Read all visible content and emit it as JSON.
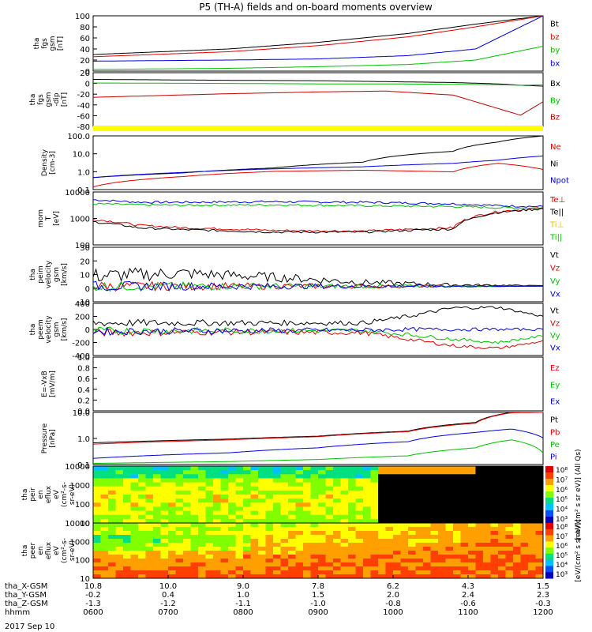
{
  "title": "P5 (TH-A) fields and on-board moments overview",
  "date": "2017 Sep 10",
  "chart_data": [
    {
      "type": "line",
      "panel_label": [
        "tha",
        "fgs",
        "gsm",
        "[nT]"
      ],
      "y_ticks": [
        "100",
        "80",
        "60",
        "40",
        "20",
        "0"
      ],
      "ylim": [
        0,
        100
      ],
      "legend": [
        {
          "text": "Bt",
          "color": "#000000"
        },
        {
          "text": "bz",
          "color": "#e00000"
        },
        {
          "text": "by",
          "color": "#00c000"
        },
        {
          "text": "bx",
          "color": "#0000e0"
        }
      ],
      "x": [
        0,
        0.3,
        0.5,
        0.7,
        0.85,
        1
      ],
      "series": [
        {
          "name": "Bt",
          "color": "#000000",
          "values": [
            30,
            40,
            52,
            68,
            85,
            100
          ]
        },
        {
          "name": "bz",
          "color": "#e00000",
          "values": [
            26,
            35,
            46,
            62,
            80,
            100
          ]
        },
        {
          "name": "by",
          "color": "#00c000",
          "values": [
            3,
            5,
            8,
            12,
            20,
            45
          ]
        },
        {
          "name": "bx",
          "color": "#0000e0",
          "values": [
            18,
            20,
            22,
            28,
            40,
            100
          ]
        }
      ]
    },
    {
      "type": "line",
      "panel_label": [
        "tha",
        "fgs",
        "gsm",
        "-dip",
        "[nT]"
      ],
      "y_ticks": [
        "20",
        "0",
        "-20",
        "-40",
        "-60",
        "-80"
      ],
      "ylim": [
        -95,
        25
      ],
      "legend": [
        {
          "text": "Bx",
          "color": "#000000"
        },
        {
          "text": "By",
          "color": "#00c000"
        },
        {
          "text": "Bz",
          "color": "#c00000"
        }
      ],
      "x": [
        0,
        0.3,
        0.5,
        0.65,
        0.8,
        0.9,
        0.95,
        1
      ],
      "series": [
        {
          "name": "Bx",
          "color": "#000000",
          "values": [
            10,
            8,
            7,
            5,
            3,
            0,
            -3,
            -5
          ]
        },
        {
          "name": "By",
          "color": "#00c000",
          "values": [
            2,
            1,
            0,
            0,
            -1,
            -2,
            -3,
            -2
          ]
        },
        {
          "name": "Bz",
          "color": "#c00000",
          "values": [
            -30,
            -22,
            -18,
            -16,
            -25,
            -55,
            -70,
            -40
          ]
        }
      ]
    },
    {
      "type": "line",
      "panel_label": [
        "Density",
        "[cm-3]"
      ],
      "y_ticks": [
        "100.0",
        "10.0",
        "1.0",
        "0.1"
      ],
      "ylim": [
        0.1,
        300
      ],
      "scale": "log",
      "legend": [
        {
          "text": "Ne",
          "color": "#e00000"
        },
        {
          "text": "Ni",
          "color": "#000000"
        },
        {
          "text": "Npot",
          "color": "#0000e0"
        }
      ],
      "x": [
        0,
        0.2,
        0.4,
        0.6,
        0.8,
        0.9,
        1
      ],
      "series": [
        {
          "name": "Ni",
          "color": "#000000",
          "values": [
            0.6,
            1.2,
            2.5,
            6,
            30,
            120,
            300
          ]
        },
        {
          "name": "Ne",
          "color": "#e00000",
          "values": [
            0.15,
            0.7,
            1.5,
            1.8,
            1.4,
            5,
            2
          ]
        },
        {
          "name": "Npot",
          "color": "#0000e0",
          "values": [
            0.6,
            1.3,
            2.2,
            3,
            5,
            8,
            15
          ]
        }
      ]
    },
    {
      "type": "line",
      "panel_label": [
        "mom",
        "T",
        "[eV]"
      ],
      "y_ticks": [
        "10000",
        "1000",
        "100"
      ],
      "ylim": [
        20,
        10000
      ],
      "scale": "log",
      "legend": [
        {
          "text": "Te⊥",
          "color": "#e00000"
        },
        {
          "text": "Te||",
          "color": "#000000"
        },
        {
          "text": "Ti⊥",
          "color": "#e0c000"
        },
        {
          "text": "Ti||",
          "color": "#00c000"
        }
      ],
      "x": [
        0,
        0.1,
        0.2,
        0.4,
        0.6,
        0.8,
        0.9,
        1
      ],
      "series": [
        {
          "name": "Ti⊥",
          "color": "#0000e0",
          "values": [
            4000,
            3000,
            3000,
            3200,
            3000,
            2500,
            2000,
            1800
          ]
        },
        {
          "name": "Ti||",
          "color": "#00c000",
          "values": [
            2500,
            2200,
            2100,
            2200,
            2000,
            1800,
            1600,
            1500
          ]
        },
        {
          "name": "Te⊥",
          "color": "#e00000",
          "values": [
            400,
            200,
            150,
            110,
            100,
            150,
            1000,
            1500
          ]
        },
        {
          "name": "Te||",
          "color": "#000000",
          "values": [
            300,
            150,
            120,
            90,
            90,
            130,
            900,
            1400
          ]
        }
      ]
    },
    {
      "type": "line",
      "panel_label": [
        "tha",
        "peim",
        "velocity",
        "gsm",
        "[km/s]"
      ],
      "y_ticks": [
        "30",
        "20",
        "10",
        "0",
        "-10"
      ],
      "ylim": [
        -12,
        30
      ],
      "legend": [
        {
          "text": "Vt",
          "color": "#000000"
        },
        {
          "text": "Vz",
          "color": "#e00000"
        },
        {
          "text": "Vy",
          "color": "#00c000"
        },
        {
          "text": "Vx",
          "color": "#0000e0"
        }
      ],
      "x": [
        0,
        0.2,
        0.4,
        0.6,
        0.8,
        1
      ],
      "series": [
        {
          "name": "Vt",
          "color": "#000000",
          "values": [
            8,
            10,
            7,
            3,
            1,
            0.5
          ]
        },
        {
          "name": "Vz",
          "color": "#e00000",
          "values": [
            0,
            0,
            0,
            0,
            0,
            0
          ]
        },
        {
          "name": "Vy",
          "color": "#00c000",
          "values": [
            0,
            0,
            0,
            0,
            0,
            0
          ]
        },
        {
          "name": "Vx",
          "color": "#0000e0",
          "values": [
            0,
            0,
            0,
            0,
            0,
            0
          ]
        }
      ]
    },
    {
      "type": "line",
      "panel_label": [
        "tha",
        "peem",
        "velocity",
        "gsm",
        "[km/s]"
      ],
      "y_ticks": [
        "400",
        "200",
        "0",
        "-200",
        "-400"
      ],
      "ylim": [
        -400,
        400
      ],
      "legend": [
        {
          "text": "Vt",
          "color": "#000000"
        },
        {
          "text": "Vz",
          "color": "#e00000"
        },
        {
          "text": "Vy",
          "color": "#00c000"
        },
        {
          "text": "Vx",
          "color": "#0000e0"
        }
      ],
      "x": [
        0,
        0.3,
        0.6,
        0.7,
        0.8,
        0.9,
        1
      ],
      "series": [
        {
          "name": "Vt",
          "color": "#000000",
          "values": [
            100,
            100,
            100,
            200,
            330,
            340,
            200
          ]
        },
        {
          "name": "Vz",
          "color": "#e00000",
          "values": [
            -50,
            -40,
            -50,
            -150,
            -250,
            -290,
            -180
          ]
        },
        {
          "name": "Vy",
          "color": "#00c000",
          "values": [
            -20,
            -20,
            -20,
            -80,
            -150,
            -200,
            -100
          ]
        },
        {
          "name": "Vx",
          "color": "#0000e0",
          "values": [
            -30,
            -20,
            -10,
            0,
            0,
            0,
            0
          ]
        }
      ]
    },
    {
      "type": "line",
      "panel_label": [
        "E=-VxB",
        "[mV/m]"
      ],
      "y_ticks": [
        "1.0",
        "0.8",
        "0.6",
        "0.4",
        "0.2",
        "0.0"
      ],
      "ylim": [
        0,
        1
      ],
      "legend": [
        {
          "text": "Ez",
          "color": "#e00000"
        },
        {
          "text": "Ey",
          "color": "#00c000"
        },
        {
          "text": "Ex",
          "color": "#0000e0"
        }
      ],
      "x": [],
      "series": []
    },
    {
      "type": "line",
      "panel_label": [
        "Pressure",
        "[nPa]"
      ],
      "y_ticks": [
        "10.0",
        "1.0",
        "0.1"
      ],
      "ylim": [
        0.03,
        40
      ],
      "scale": "log",
      "legend": [
        {
          "text": "Pt",
          "color": "#000000"
        },
        {
          "text": "Pb",
          "color": "#e00000"
        },
        {
          "text": "Pe",
          "color": "#00c000"
        },
        {
          "text": "Pi",
          "color": "#0000e0"
        }
      ],
      "x": [
        0,
        0.3,
        0.5,
        0.7,
        0.85,
        0.93,
        1
      ],
      "series": [
        {
          "name": "Pt",
          "color": "#000000",
          "values": [
            0.6,
            1.0,
            1.5,
            3,
            10,
            40,
            40
          ]
        },
        {
          "name": "Pb",
          "color": "#e00000",
          "values": [
            0.5,
            0.9,
            1.4,
            2.8,
            9,
            38,
            40
          ]
        },
        {
          "name": "Pi",
          "color": "#0000e0",
          "values": [
            0.07,
            0.15,
            0.3,
            0.7,
            2.5,
            4,
            1.2
          ]
        },
        {
          "name": "Pe",
          "color": "#00c000",
          "values": [
            0.035,
            0.045,
            0.06,
            0.1,
            0.3,
            0.9,
            0.15
          ]
        }
      ]
    },
    {
      "type": "heatmap",
      "panel_label": [
        "tha",
        "peir",
        "en",
        "eflux",
        "eV",
        "(cm²-s-",
        "sr-eV)"
      ],
      "y_ticks": [
        "10000",
        "1000",
        "100",
        "10"
      ],
      "colorbar_ticks": [
        "10⁸",
        "10⁷",
        "10⁶",
        "10⁵",
        "10⁴",
        "10³"
      ],
      "colorbar_label": "[eV/(cm² s sr eV)] (All Qs)"
    },
    {
      "type": "heatmap",
      "panel_label": [
        "tha",
        "peer",
        "en",
        "eflux",
        "eV",
        "(cm²-s-",
        "sr-eV)"
      ],
      "y_ticks": [
        "10000",
        "1000",
        "100",
        "10"
      ],
      "colorbar_ticks": [
        "10⁸",
        "10⁷",
        "10⁶",
        "10⁵",
        "10⁴",
        "10³"
      ],
      "colorbar_label": "[eV/(cm² s sr eV)]"
    }
  ],
  "x_axis": {
    "row_labels": [
      "tha_X-GSM",
      "tha_Y-GSM",
      "tha_Z-GSM",
      "hhmm"
    ],
    "columns": [
      [
        "10.8",
        "-0.2",
        "-1.3",
        "0600"
      ],
      [
        "10.0",
        "0.4",
        "-1.2",
        "0700"
      ],
      [
        "9.0",
        "1.0",
        "-1.1",
        "0800"
      ],
      [
        "7.8",
        "1.5",
        "-1.0",
        "0900"
      ],
      [
        "6.2",
        "2.0",
        "-0.8",
        "1000"
      ],
      [
        "4.3",
        "2.4",
        "-0.6",
        "1100"
      ],
      [
        "1.5",
        "2.3",
        "-0.3",
        "1200"
      ]
    ]
  }
}
